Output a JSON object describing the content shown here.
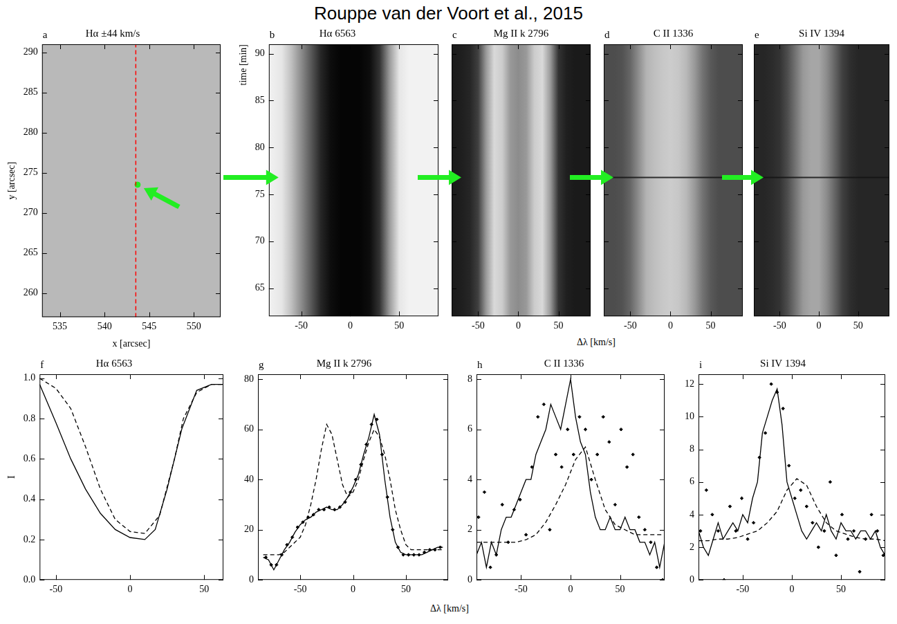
{
  "title": "Rouppe van der Voort et al., 2015",
  "top_row_xlabel": "Δλ [km/s]",
  "bottom_row_xlabel": "Δλ [km/s]",
  "chart_data": [
    {
      "panel": "a",
      "type": "image",
      "title": "Hα ±44 km/s",
      "xlabel": "x [arcsec]",
      "ylabel": "y [arcsec]",
      "xlim": [
        533,
        553
      ],
      "xticks": [
        535,
        540,
        545,
        550
      ],
      "ylim": [
        257,
        291
      ],
      "yticks": [
        260,
        265,
        270,
        275,
        280,
        285,
        290
      ],
      "slit_x": 543.5,
      "slit_color": "#ff0000",
      "marker_point": {
        "x": 543.7,
        "y": 273.5,
        "color": "#22ee22"
      }
    },
    {
      "panel": "b",
      "type": "spectrogram",
      "title": "Hα 6563",
      "ylabel": "time [min]",
      "xlim": [
        -83,
        90
      ],
      "xticks": [
        -50,
        0,
        50
      ],
      "ylim": [
        62,
        91
      ],
      "yticks": [
        65,
        70,
        75,
        80,
        85,
        90
      ],
      "event_time": 76.8,
      "profile": {
        "x": [
          -83,
          -70,
          -60,
          -50,
          -40,
          -30,
          -20,
          -10,
          0,
          10,
          20,
          30,
          40,
          50,
          60,
          70,
          80,
          90
        ],
        "intensity": [
          0.95,
          0.9,
          0.75,
          0.55,
          0.35,
          0.15,
          0.05,
          0.02,
          0.02,
          0.02,
          0.05,
          0.2,
          0.6,
          0.9,
          0.95,
          0.95,
          0.95,
          0.95
        ]
      }
    },
    {
      "panel": "c",
      "type": "spectrogram",
      "title": "Mg II k 2796",
      "tick_labels": "x",
      "xlim": [
        -83,
        90
      ],
      "xticks": [
        -50,
        0,
        50
      ],
      "ylim": [
        62,
        91
      ],
      "yticks": [
        65,
        70,
        75,
        80,
        85,
        90
      ],
      "event_time": 76.8,
      "profile": {
        "x": [
          -83,
          -70,
          -60,
          -50,
          -40,
          -30,
          -20,
          -10,
          0,
          10,
          20,
          30,
          40,
          50,
          60,
          70,
          80,
          90
        ],
        "intensity": [
          0.1,
          0.12,
          0.15,
          0.25,
          0.6,
          0.85,
          0.8,
          0.6,
          0.55,
          0.6,
          0.8,
          0.85,
          0.6,
          0.2,
          0.12,
          0.1,
          0.1,
          0.1
        ]
      }
    },
    {
      "panel": "d",
      "type": "spectrogram",
      "title": "C II 1336",
      "tick_labels": "x",
      "xlim": [
        -83,
        90
      ],
      "xticks": [
        -50,
        0,
        50
      ],
      "ylim": [
        62,
        91
      ],
      "yticks": [
        65,
        70,
        75,
        80,
        85,
        90
      ],
      "event_time": 76.8,
      "absorption_time": 76.8,
      "profile": {
        "x": [
          -83,
          -70,
          -60,
          -50,
          -40,
          -30,
          -20,
          -10,
          0,
          10,
          20,
          30,
          40,
          50,
          60,
          70,
          80,
          90
        ],
        "intensity": [
          0.3,
          0.3,
          0.32,
          0.4,
          0.55,
          0.7,
          0.75,
          0.78,
          0.8,
          0.78,
          0.72,
          0.6,
          0.45,
          0.35,
          0.3,
          0.3,
          0.3,
          0.3
        ]
      }
    },
    {
      "panel": "e",
      "type": "spectrogram",
      "title": "Si IV 1394",
      "tick_labels": "x",
      "xlim": [
        -83,
        90
      ],
      "xticks": [
        -50,
        0,
        50
      ],
      "ylim": [
        62,
        91
      ],
      "yticks": [
        65,
        70,
        75,
        80,
        85,
        90
      ],
      "event_time": 76.8,
      "absorption_time": 76.8,
      "profile": {
        "x": [
          -83,
          -70,
          -60,
          -50,
          -40,
          -30,
          -20,
          -10,
          0,
          10,
          20,
          30,
          40,
          50,
          60,
          70,
          80,
          90
        ],
        "intensity": [
          0.15,
          0.15,
          0.17,
          0.2,
          0.3,
          0.45,
          0.6,
          0.65,
          0.65,
          0.55,
          0.4,
          0.25,
          0.18,
          0.15,
          0.15,
          0.15,
          0.15,
          0.15
        ]
      }
    },
    {
      "panel": "f",
      "type": "line",
      "title": "Hα 6563",
      "ylabel": "I",
      "xlim": [
        -61,
        63
      ],
      "xticks": [
        -50,
        0,
        50
      ],
      "ylim": [
        0,
        1.02
      ],
      "yticks": [
        {
          "value": 0,
          "label": "0.0"
        },
        {
          "value": 0.2,
          "label": "0.2"
        },
        {
          "value": 0.4,
          "label": "0.4"
        },
        {
          "value": 0.6,
          "label": "0.6"
        },
        {
          "value": 0.8,
          "label": "0.8"
        },
        {
          "value": 1,
          "label": "1.0"
        }
      ],
      "series": [
        {
          "type": "line",
          "line_style": "solid",
          "color": "#000000",
          "x": [
            -61,
            -50,
            -40,
            -30,
            -20,
            -10,
            0,
            10,
            17,
            25,
            35,
            45,
            55,
            63
          ],
          "values": [
            0.97,
            0.78,
            0.6,
            0.45,
            0.33,
            0.25,
            0.21,
            0.2,
            0.25,
            0.45,
            0.75,
            0.94,
            0.97,
            0.97
          ]
        },
        {
          "type": "line",
          "line_style": "dashed",
          "color": "#000000",
          "x": [
            -61,
            -50,
            -40,
            -30,
            -20,
            -10,
            0,
            10,
            20,
            30,
            36,
            45,
            55,
            63
          ],
          "values": [
            1.0,
            0.95,
            0.85,
            0.66,
            0.45,
            0.3,
            0.24,
            0.23,
            0.32,
            0.6,
            0.8,
            0.93,
            0.97,
            0.97
          ]
        }
      ]
    },
    {
      "panel": "g",
      "type": "line",
      "title": "Mg II k 2796",
      "xlim": [
        -90,
        90
      ],
      "xticks": [
        -50,
        0,
        50
      ],
      "ylim": [
        0,
        82
      ],
      "yticks": [
        0,
        20,
        40,
        60,
        80
      ],
      "series": [
        {
          "type": "line",
          "line_style": "solid",
          "color": "#000000",
          "x": [
            -85,
            -80,
            -75,
            -70,
            -65,
            -60,
            -55,
            -50,
            -45,
            -40,
            -35,
            -30,
            -25,
            -20,
            -15,
            -10,
            -5,
            0,
            5,
            10,
            15,
            20,
            25,
            30,
            35,
            40,
            45,
            50,
            55,
            60,
            65,
            70,
            75,
            80,
            85
          ],
          "values": [
            9,
            8,
            4,
            8,
            12,
            15,
            19,
            22,
            24,
            25,
            27,
            28,
            29,
            28,
            28,
            30,
            33,
            37,
            42,
            50,
            57,
            66,
            58,
            40,
            25,
            15,
            11,
            10,
            10,
            10,
            10,
            11,
            12,
            13,
            13
          ]
        },
        {
          "type": "line",
          "line_style": "dashed",
          "color": "#000000",
          "x": [
            -85,
            -80,
            -75,
            -70,
            -65,
            -60,
            -55,
            -50,
            -45,
            -40,
            -35,
            -30,
            -25,
            -20,
            -15,
            -10,
            -5,
            0,
            5,
            10,
            15,
            20,
            25,
            30,
            35,
            40,
            45,
            50,
            55,
            60,
            65,
            70,
            75,
            80,
            85
          ],
          "values": [
            10,
            10,
            10,
            10,
            11,
            13,
            15,
            17,
            22,
            30,
            40,
            52,
            62,
            58,
            48,
            38,
            33,
            35,
            40,
            48,
            55,
            60,
            57,
            50,
            40,
            28,
            20,
            14,
            12,
            12,
            12,
            12,
            12,
            12,
            12
          ]
        },
        {
          "type": "scatter",
          "marker": "diamond",
          "color": "#000000",
          "x": [
            -82.5,
            -77.5,
            -72.5,
            -67.5,
            -62.5,
            -57.5,
            -52.5,
            -47.5,
            -42.5,
            -37.5,
            -32.5,
            -27.5,
            -22.5,
            -17.5,
            -12.5,
            -7.5,
            -2.5,
            2.5,
            7.5,
            12.5,
            17.5,
            22.5,
            27.5,
            32.5,
            37.5,
            42.5,
            47.5,
            52.5,
            57.5,
            62.5,
            67.5,
            72.5,
            77.5,
            82.5
          ],
          "values": [
            9,
            6,
            6,
            10,
            14,
            17,
            21,
            23,
            25,
            26,
            28,
            28,
            29,
            28,
            29,
            31,
            35,
            40,
            46,
            54,
            62,
            64,
            50,
            33,
            20,
            13,
            10,
            10,
            10,
            10,
            11,
            12,
            12,
            13
          ]
        }
      ]
    },
    {
      "panel": "h",
      "type": "line",
      "title": "C II 1336",
      "xlim": [
        -95,
        95
      ],
      "xticks": [
        -50,
        0,
        50
      ],
      "ylim": [
        0,
        8.2
      ],
      "yticks": [
        0,
        2,
        4,
        6,
        8
      ],
      "series": [
        {
          "type": "line",
          "line_style": "solid",
          "color": "#000000",
          "x": [
            -95,
            -90,
            -85,
            -80,
            -75,
            -70,
            -65,
            -60,
            -55,
            -50,
            -45,
            -40,
            -35,
            -30,
            -25,
            -20,
            -15,
            -10,
            -5,
            0,
            5,
            10,
            15,
            20,
            25,
            30,
            35,
            40,
            45,
            50,
            55,
            60,
            65,
            70,
            75,
            80,
            85,
            90,
            95
          ],
          "values": [
            1,
            1.5,
            0.5,
            1.5,
            1,
            2,
            2.5,
            2.5,
            3,
            3.5,
            4,
            4,
            5,
            5.5,
            6,
            7,
            6.5,
            6,
            7,
            8,
            6.5,
            5.5,
            5,
            3.5,
            2.5,
            2,
            2,
            2.5,
            2,
            2,
            2.5,
            2,
            2,
            1.5,
            1.5,
            1,
            1.5,
            0.5,
            1.5
          ]
        },
        {
          "type": "line",
          "line_style": "dashed",
          "color": "#000000",
          "x": [
            -95,
            -85,
            -75,
            -65,
            -55,
            -45,
            -35,
            -25,
            -15,
            -5,
            5,
            15,
            25,
            35,
            45,
            55,
            65,
            75,
            85,
            95
          ],
          "values": [
            1.5,
            1.5,
            1.5,
            1.5,
            1.5,
            1.6,
            1.8,
            2.3,
            3,
            3.8,
            4.8,
            5.3,
            4,
            2.8,
            2.2,
            2,
            1.8,
            1.8,
            1.8,
            1.8
          ]
        },
        {
          "type": "scatter",
          "marker": "diamond",
          "color": "#000000",
          "x": [
            -93,
            -87,
            -81,
            -75,
            -69,
            -63,
            -57,
            -51,
            -45,
            -39,
            -33,
            -27,
            -21,
            -15,
            -9,
            -3,
            3,
            9,
            15,
            21,
            27,
            33,
            39,
            45,
            51,
            57,
            63,
            69,
            75,
            81,
            87,
            93
          ],
          "values": [
            2.5,
            3.5,
            0.5,
            1,
            3,
            1.5,
            2.8,
            3.2,
            1.8,
            4.5,
            6.5,
            7,
            2,
            5,
            4.5,
            6,
            5,
            6.5,
            6,
            4,
            5,
            6.5,
            5.5,
            3,
            6,
            4.5,
            5,
            2.5,
            2,
            1.5,
            0.5,
            0
          ]
        }
      ]
    },
    {
      "panel": "i",
      "type": "line",
      "title": "Si IV 1394",
      "xlim": [
        -95,
        95
      ],
      "xticks": [
        -50,
        0,
        50
      ],
      "ylim": [
        0,
        12.6
      ],
      "yticks": [
        0,
        2,
        4,
        6,
        8,
        10,
        12
      ],
      "series": [
        {
          "type": "line",
          "line_style": "solid",
          "color": "#000000",
          "x": [
            -95,
            -90,
            -85,
            -80,
            -75,
            -70,
            -65,
            -60,
            -55,
            -50,
            -45,
            -40,
            -35,
            -30,
            -25,
            -20,
            -15,
            -10,
            -5,
            0,
            5,
            10,
            15,
            20,
            25,
            30,
            35,
            40,
            45,
            50,
            55,
            60,
            65,
            70,
            75,
            80,
            85,
            90,
            95
          ],
          "values": [
            3,
            2,
            1.5,
            2.5,
            3.5,
            2.5,
            3,
            3.5,
            3,
            4,
            3.5,
            5,
            6,
            9,
            10,
            11,
            11.7,
            9.5,
            6,
            5,
            4,
            3,
            2.5,
            3,
            3.5,
            3,
            4,
            3,
            2.5,
            3.5,
            3,
            3,
            2.5,
            3,
            3,
            2.5,
            3,
            2,
            1.5
          ]
        },
        {
          "type": "line",
          "line_style": "dashed",
          "color": "#000000",
          "x": [
            -95,
            -85,
            -75,
            -65,
            -55,
            -45,
            -35,
            -25,
            -15,
            -5,
            5,
            15,
            25,
            35,
            45,
            55,
            65,
            75,
            85,
            95
          ],
          "values": [
            2.4,
            2.4,
            2.5,
            2.5,
            2.6,
            2.8,
            3,
            3.5,
            4.2,
            5.5,
            6.2,
            5.8,
            4.5,
            3.5,
            3,
            2.8,
            2.6,
            2.5,
            2.5,
            2.4
          ]
        },
        {
          "type": "scatter",
          "marker": "diamond",
          "color": "#000000",
          "x": [
            -93,
            -87,
            -81,
            -75,
            -69,
            -63,
            -57,
            -51,
            -45,
            -39,
            -33,
            -27,
            -21,
            -15,
            -9,
            -3,
            3,
            9,
            15,
            21,
            27,
            33,
            39,
            45,
            51,
            57,
            63,
            69,
            75,
            81,
            87,
            93
          ],
          "values": [
            3,
            5.5,
            4,
            3,
            0,
            4.5,
            3,
            5,
            2.5,
            3.5,
            7.5,
            9,
            12,
            11.5,
            10.5,
            7,
            5,
            5.5,
            4.5,
            3.5,
            2,
            3,
            6,
            1.5,
            4,
            2.5,
            3,
            0.5,
            2.5,
            4,
            3,
            1.5
          ]
        }
      ]
    }
  ]
}
